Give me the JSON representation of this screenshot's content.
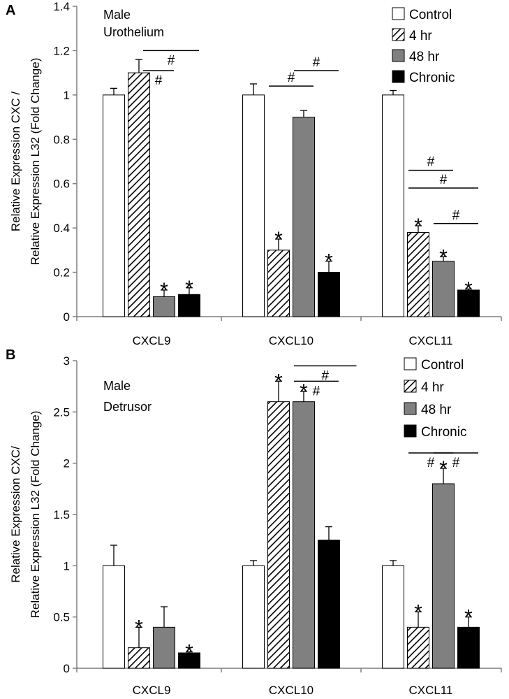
{
  "chart_data": [
    {
      "type": "bar",
      "panel_letter": "A",
      "title_lines": [
        "Male",
        "Urothelium"
      ],
      "ylabel_lines": [
        "Relative Expression CXC /",
        "Relative Expression L32 (Fold Change)"
      ],
      "xlabel": "",
      "ylim": [
        0,
        1.4
      ],
      "yticks": [
        0,
        0.2,
        0.4,
        0.6,
        0.8,
        1,
        1.2,
        1.4
      ],
      "categories": [
        "CXCL9",
        "CXCL10",
        "CXCL11"
      ],
      "series": [
        {
          "name": "Control",
          "values": [
            1.0,
            1.0,
            1.0
          ],
          "errors": [
            0.03,
            0.05,
            0.02
          ],
          "marks": [
            "",
            "",
            ""
          ]
        },
        {
          "name": "4 hr",
          "values": [
            1.1,
            0.3,
            0.38
          ],
          "errors": [
            0.06,
            0.05,
            0.03
          ],
          "marks": [
            "",
            "*",
            "*"
          ]
        },
        {
          "name": "48 hr",
          "values": [
            0.09,
            0.9,
            0.25
          ],
          "errors": [
            0.03,
            0.03,
            0.02
          ],
          "marks": [
            "*",
            "",
            "*"
          ]
        },
        {
          "name": "Chronic",
          "values": [
            0.1,
            0.2,
            0.12
          ],
          "errors": [
            0.03,
            0.05,
            0.005
          ],
          "marks": [
            "*",
            "*",
            "*"
          ]
        }
      ],
      "comparisons": [
        {
          "category": 0,
          "from": 1,
          "to": 3,
          "y": 1.2,
          "label": "#",
          "label_pos": "below"
        },
        {
          "category": 0,
          "from": 1,
          "to": 2,
          "y": 1.11,
          "label": "#",
          "label_pos": "below"
        },
        {
          "category": 1,
          "from": 1,
          "to": 2,
          "y": 1.04,
          "label": "#",
          "label_pos": "above"
        },
        {
          "category": 1,
          "from": 2,
          "to": 3,
          "y": 1.11,
          "label": "#",
          "label_pos": "above"
        },
        {
          "category": 2,
          "from": 1,
          "to": 2,
          "y": 0.66,
          "label": "#",
          "label_pos": "above"
        },
        {
          "category": 2,
          "from": 1,
          "to": 3,
          "y": 0.58,
          "label": "#",
          "label_pos": "above"
        },
        {
          "category": 2,
          "from": 2,
          "to": 3,
          "y": 0.42,
          "label": "#",
          "label_pos": "above"
        }
      ],
      "legend": {
        "position": "top-right",
        "entries": [
          "Control",
          "4 hr",
          "48 hr",
          "Chronic"
        ]
      }
    },
    {
      "type": "bar",
      "panel_letter": "B",
      "title_lines": [
        "Male",
        "Detrusor"
      ],
      "ylabel_lines": [
        "Relative Expression CXC/",
        "Relative Expression L32 (Fold Change)"
      ],
      "xlabel": "",
      "ylim": [
        0,
        3
      ],
      "yticks": [
        0,
        0.5,
        1,
        1.5,
        2,
        2.5,
        3
      ],
      "categories": [
        "CXCL9",
        "CXCL10",
        "CXCL11"
      ],
      "series": [
        {
          "name": "Control",
          "values": [
            1.0,
            1.0,
            1.0
          ],
          "errors": [
            0.2,
            0.05,
            0.05
          ],
          "marks": [
            "",
            "",
            ""
          ]
        },
        {
          "name": "4 hr",
          "values": [
            0.2,
            2.6,
            0.4
          ],
          "errors": [
            0.2,
            0.2,
            0.15
          ],
          "marks": [
            "*",
            "*",
            "*"
          ]
        },
        {
          "name": "48 hr",
          "values": [
            0.4,
            2.6,
            1.8
          ],
          "errors": [
            0.2,
            0.1,
            0.15
          ],
          "marks": [
            "",
            "*",
            "*"
          ]
        },
        {
          "name": "Chronic",
          "values": [
            0.15,
            1.25,
            0.4
          ],
          "errors": [
            0.01,
            0.13,
            0.1
          ],
          "marks": [
            "*",
            "",
            "*"
          ]
        }
      ],
      "comparisons": [
        {
          "category": 1,
          "from": 2,
          "to": 4,
          "y": 2.95,
          "label": "#",
          "label_pos": "below"
        },
        {
          "category": 1,
          "from": 2,
          "to": 3,
          "y": 2.8,
          "label": "#",
          "label_pos": "below"
        },
        {
          "category": 2,
          "from": 1,
          "to": 2,
          "y": 2.1,
          "label": "#",
          "label_pos": "below"
        },
        {
          "category": 2,
          "from": 2,
          "to": 3,
          "y": 2.1,
          "label": "#",
          "label_pos": "below"
        }
      ],
      "legend": {
        "position": "top-right",
        "entries": [
          "Control",
          "4 hr",
          "48 hr",
          "Chronic"
        ]
      }
    }
  ],
  "colors": {
    "control": "#ffffff",
    "hatch": "#000000",
    "h48": "#808080",
    "chronic": "#000000",
    "axis": "#7f7f7f",
    "outline": "#000000"
  }
}
